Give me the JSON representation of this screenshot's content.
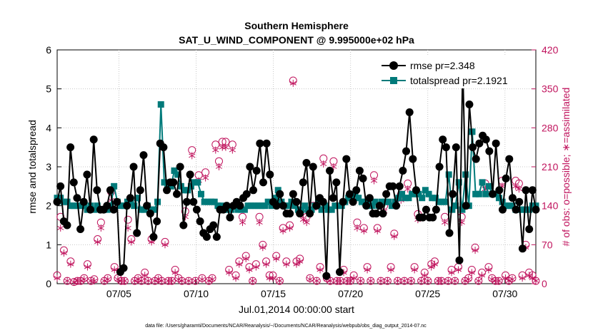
{
  "chart_data": {
    "type": "line",
    "title": "Southern Hemisphere",
    "subtitle": "SAT_U_WIND_COMPONENT @ 9.995000e+02 hPa",
    "xlabel": "Jul.01,2014 00:00:00 start",
    "ylabel": "rmse and totalspread",
    "ylabel_right": "# of obs: o=possible; ∗=assimilated",
    "footnote": "data file: /Users/gharamti/Documents/NCAR/Reanalysis/~/Documents/NCAR/Reanalysis/webpub/obs_diag_output_2014-07.nc",
    "x_ticks": [
      "07/05",
      "07/10",
      "07/15",
      "07/20",
      "07/25",
      "07/30"
    ],
    "x_tick_days": [
      5,
      10,
      15,
      20,
      25,
      30
    ],
    "xlim": [
      1,
      32
    ],
    "ylim": [
      0,
      6
    ],
    "y_ticks": [
      "0",
      "1",
      "2",
      "3",
      "4",
      "5",
      "6"
    ],
    "ylim_right": [
      0,
      420
    ],
    "y_ticks_right": [
      "0",
      "70",
      "140",
      "210",
      "280",
      "350",
      "420"
    ],
    "legend_placement": "top-right",
    "series": [
      {
        "name": "rmse pr=2.348",
        "color": "#000000",
        "marker": "circle",
        "axis": "left",
        "values": [
          2.1,
          2.5,
          1.6,
          1.5,
          3.5,
          2.6,
          2.2,
          1.4,
          2.1,
          2.8,
          1.9,
          3.7,
          2.4,
          1.9,
          1.9,
          2.0,
          2.4,
          1.9,
          2.1,
          0.3,
          0.4,
          2.0,
          2.2,
          3.0,
          1.3,
          2.4,
          3.3,
          2.0,
          1.8,
          1.2,
          1.6,
          3.6,
          3.5,
          2.4,
          2.6,
          2.6,
          2.3,
          3.0,
          1.5,
          2.1,
          2.8,
          2.1,
          1.9,
          1.6,
          1.3,
          1.2,
          1.4,
          1.5,
          1.2,
          1.9,
          1.9,
          2.0,
          1.7,
          2.0,
          2.1,
          2.0,
          2.2,
          2.3,
          3.0,
          2.4,
          2.9,
          3.6,
          2.6,
          3.6,
          2.8,
          2.1,
          2.0,
          2.3,
          2.0,
          1.8,
          1.8,
          2.3,
          2.1,
          1.8,
          2.6,
          3.1,
          1.8,
          3.0,
          2.0,
          2.2,
          2.1,
          0.2,
          2.9,
          2.2,
          2.6,
          0.3,
          2.1,
          3.2,
          2.3,
          2.1,
          2.4,
          2.9,
          2.7,
          2.0,
          2.2,
          1.8,
          1.8,
          2.0,
          1.8,
          2.3,
          2.5,
          2.5,
          2.0,
          2.5,
          2.9,
          3.4,
          4.4,
          3.2,
          2.4,
          1.7,
          1.7,
          1.9,
          1.7,
          1.7,
          1.9,
          3.0,
          3.7,
          3.5,
          1.3,
          2.3,
          3.5,
          0.6,
          5.6,
          2.0,
          4.6,
          3.5,
          3.2,
          3.6,
          3.8,
          3.7,
          3.4,
          2.3,
          3.6,
          2.4,
          1.9,
          2.7,
          3.2,
          2.2,
          1.9,
          2.1,
          0.9,
          2.4,
          1.4,
          2.4,
          1.9
        ]
      },
      {
        "name": "totalspread pr=2.1921",
        "color": "#007a7a",
        "marker": "square",
        "axis": "left",
        "values": [
          2.2,
          2.2,
          2.1,
          2.1,
          2.0,
          2.0,
          2.0,
          2.0,
          2.0,
          1.9,
          2.0,
          1.9,
          2.0,
          1.9,
          1.9,
          1.9,
          2.0,
          2.5,
          2.1,
          2.0,
          2.0,
          2.1,
          2.1,
          2.0,
          2.2,
          1.9,
          1.9,
          2.0,
          1.9,
          1.9,
          2.1,
          4.6,
          2.6,
          2.5,
          2.5,
          2.9,
          2.8,
          2.5,
          2.4,
          2.4,
          2.5,
          2.6,
          2.6,
          2.3,
          2.1,
          2.1,
          2.1,
          2.1,
          2.0,
          2.0,
          1.9,
          1.9,
          1.9,
          2.0,
          1.9,
          1.9,
          1.9,
          2.0,
          2.0,
          2.0,
          2.0,
          2.0,
          2.0,
          2.1,
          2.0,
          2.2,
          2.4,
          2.1,
          2.0,
          2.0,
          2.1,
          2.0,
          1.9,
          1.9,
          2.0,
          1.9,
          1.9,
          2.0,
          2.1,
          1.9,
          2.0,
          1.9,
          1.9,
          2.0,
          2.0,
          2.0,
          2.1,
          2.2,
          2.2,
          2.3,
          2.2,
          2.1,
          2.1,
          2.1,
          2.0,
          2.1,
          2.0,
          2.1,
          2.1,
          2.1,
          2.0,
          2.1,
          2.2,
          2.3,
          2.2,
          2.2,
          2.3,
          2.3,
          2.3,
          2.2,
          2.4,
          2.3,
          2.2,
          2.2,
          2.1,
          2.1,
          2.1,
          2.8,
          1.9,
          2.0,
          2.6,
          1.9,
          2.8,
          2.0,
          3.9,
          2.3,
          2.3,
          2.6,
          2.3,
          2.5,
          2.3,
          2.3,
          2.2,
          2.1,
          2.0,
          2.0,
          2.0,
          1.9,
          1.9,
          1.9,
          1.9,
          1.9,
          2.0,
          2.0
        ]
      },
      {
        "name": "possible",
        "color": "#c0135d",
        "marker": "open-circle",
        "axis": "right",
        "values": [
          15,
          120,
          60,
          5,
          40,
          3,
          5,
          5,
          10,
          35,
          5,
          8,
          80,
          110,
          5,
          10,
          165,
          30,
          10,
          5,
          5,
          115,
          80,
          5,
          10,
          5,
          20,
          5,
          80,
          5,
          10,
          5,
          75,
          5,
          5,
          25,
          10,
          5,
          130,
          5,
          240,
          5,
          195,
          10,
          200,
          5,
          10,
          250,
          220,
          255,
          255,
          25,
          250,
          15,
          40,
          120,
          50,
          30,
          5,
          35,
          120,
          70,
          40,
          15,
          15,
          50,
          5,
          100,
          40,
          105,
          365,
          40,
          45,
          125,
          120,
          10,
          140,
          5,
          30,
          225,
          10,
          5,
          220,
          5,
          5,
          25,
          5,
          5,
          15,
          110,
          5,
          100,
          30,
          5,
          195,
          100,
          5,
          140,
          5,
          30,
          90,
          5,
          160,
          5,
          180,
          5,
          30,
          125,
          5,
          20,
          5,
          35,
          40,
          5,
          5,
          120,
          5,
          25,
          5,
          30,
          120,
          5,
          10,
          25,
          65,
          5,
          20,
          180,
          30,
          10,
          5,
          5,
          185,
          15,
          5,
          10,
          185,
          180,
          15,
          70,
          20,
          15,
          5
        ]
      },
      {
        "name": "assimilated",
        "color": "#c0135d",
        "marker": "asterisk",
        "axis": "right",
        "values": [
          10,
          100,
          55,
          5,
          35,
          3,
          5,
          5,
          8,
          30,
          5,
          5,
          75,
          100,
          5,
          8,
          150,
          25,
          8,
          5,
          5,
          100,
          75,
          5,
          8,
          5,
          15,
          5,
          75,
          5,
          8,
          5,
          70,
          5,
          5,
          20,
          8,
          5,
          120,
          5,
          230,
          5,
          185,
          8,
          190,
          5,
          8,
          240,
          210,
          245,
          245,
          20,
          240,
          10,
          35,
          110,
          45,
          25,
          5,
          30,
          110,
          65,
          35,
          10,
          10,
          45,
          5,
          95,
          35,
          100,
          360,
          35,
          40,
          115,
          110,
          8,
          135,
          5,
          25,
          215,
          8,
          5,
          210,
          5,
          5,
          20,
          5,
          5,
          10,
          100,
          5,
          95,
          25,
          5,
          185,
          95,
          5,
          130,
          5,
          25,
          85,
          5,
          150,
          5,
          170,
          5,
          25,
          115,
          5,
          15,
          5,
          30,
          35,
          5,
          5,
          110,
          5,
          20,
          5,
          25,
          110,
          5,
          8,
          20,
          60,
          5,
          15,
          170,
          25,
          8,
          5,
          5,
          175,
          10,
          5,
          8,
          175,
          170,
          10,
          65,
          15,
          10,
          5
        ]
      }
    ]
  }
}
